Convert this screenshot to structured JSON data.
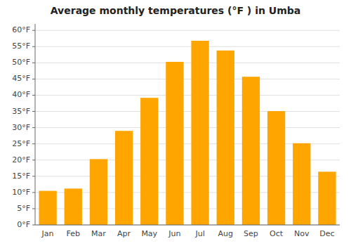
{
  "chart_data": {
    "type": "bar",
    "title": "Average monthly temperatures (°F ) in Umba",
    "categories": [
      "Jan",
      "Feb",
      "Mar",
      "Apr",
      "May",
      "Jun",
      "Jul",
      "Aug",
      "Sep",
      "Oct",
      "Nov",
      "Dec"
    ],
    "values": [
      10.5,
      11.2,
      20.3,
      29.0,
      39.2,
      50.3,
      56.8,
      53.8,
      45.7,
      35.1,
      25.2,
      16.4
    ],
    "color": "#FFA500",
    "ylim": [
      0,
      62
    ],
    "yticks": [
      {
        "value": 0,
        "label": "0°F"
      },
      {
        "value": 5,
        "label": "5°F"
      },
      {
        "value": 10,
        "label": "10°F"
      },
      {
        "value": 15,
        "label": "15°F"
      },
      {
        "value": 20,
        "label": "20°F"
      },
      {
        "value": 25,
        "label": "25°F"
      },
      {
        "value": 30,
        "label": "30°F"
      },
      {
        "value": 35,
        "label": "35°F"
      },
      {
        "value": 40,
        "label": "40°F"
      },
      {
        "value": 45,
        "label": "45°F"
      },
      {
        "value": 50,
        "label": "50°F"
      },
      {
        "value": 55,
        "label": "55°F"
      },
      {
        "value": 60,
        "label": "60°F"
      }
    ],
    "grid": true
  }
}
